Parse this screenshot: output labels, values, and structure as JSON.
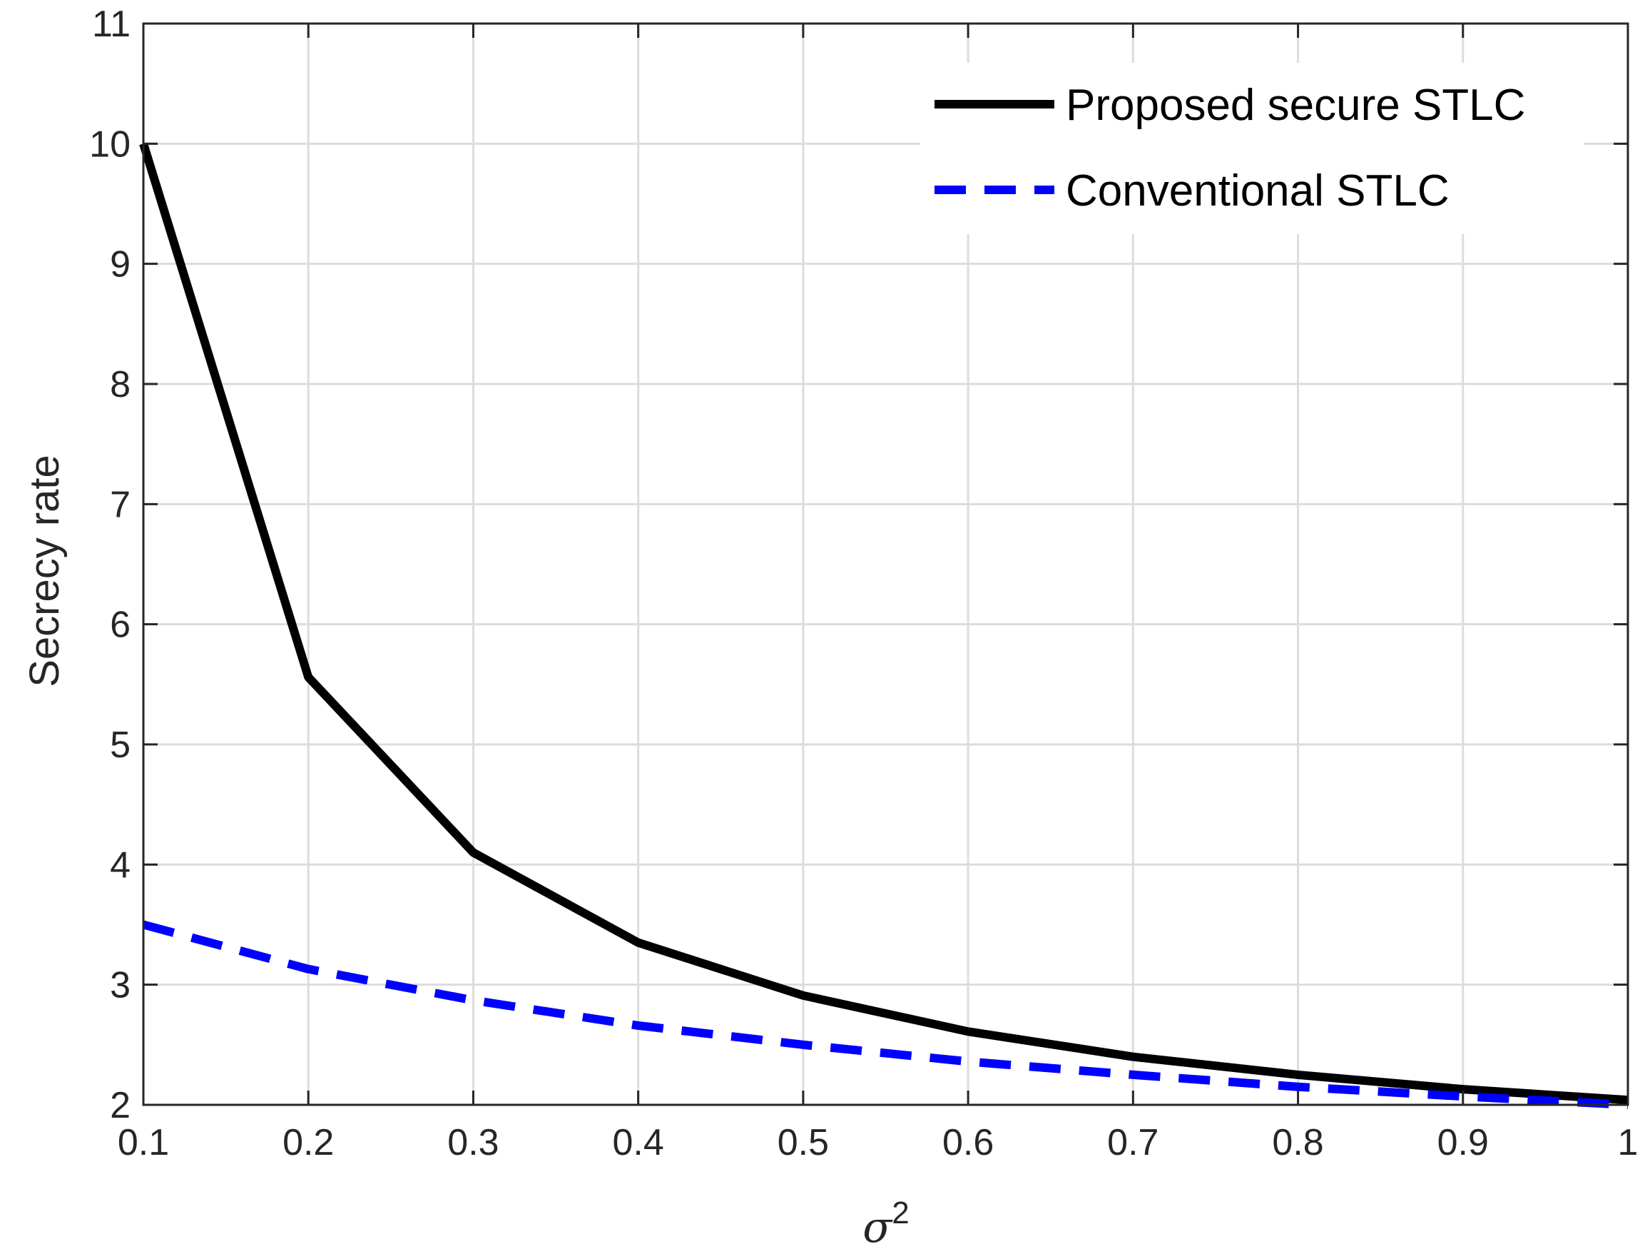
{
  "chart_data": {
    "type": "line",
    "title": "",
    "xlabel": "σ",
    "xlabel_superscript": "2",
    "ylabel": "Secrecy rate",
    "xlim": [
      0.1,
      1
    ],
    "ylim": [
      2,
      11
    ],
    "xticks": [
      0.1,
      0.2,
      0.3,
      0.4,
      0.5,
      0.6,
      0.7,
      0.8,
      0.9,
      1
    ],
    "xtick_labels": [
      "0.1",
      "0.2",
      "0.3",
      "0.4",
      "0.5",
      "0.6",
      "0.7",
      "0.8",
      "0.9",
      "1"
    ],
    "yticks": [
      2,
      3,
      4,
      5,
      6,
      7,
      8,
      9,
      10,
      11
    ],
    "ytick_labels": [
      "2",
      "3",
      "4",
      "5",
      "6",
      "7",
      "8",
      "9",
      "10",
      "11"
    ],
    "grid": true,
    "legend_position": "top-right",
    "x": [
      0.1,
      0.2,
      0.3,
      0.4,
      0.5,
      0.6,
      0.7,
      0.8,
      0.9,
      1.0
    ],
    "series": [
      {
        "name": "Proposed secure STLC",
        "color": "#000000",
        "style": "solid",
        "values": [
          10.0,
          5.56,
          4.1,
          3.35,
          2.91,
          2.61,
          2.4,
          2.25,
          2.13,
          2.04
        ]
      },
      {
        "name": "Conventional STLC",
        "color": "#0000ff",
        "style": "dashed",
        "values": [
          3.5,
          3.13,
          2.87,
          2.66,
          2.5,
          2.36,
          2.25,
          2.15,
          2.07,
          2.0
        ]
      }
    ]
  }
}
